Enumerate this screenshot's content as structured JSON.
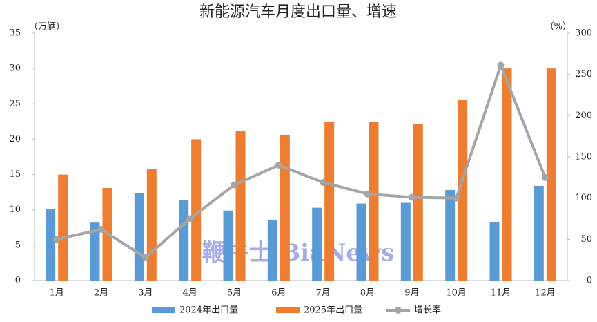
{
  "chart_data": {
    "type": "bar-line",
    "title": "新能源汽车月度出口量、增速",
    "y_label": "（万辆）",
    "y2_label": "（%）",
    "watermark": "鞭牛士 BiaNews",
    "categories": [
      "1月",
      "2月",
      "3月",
      "4月",
      "5月",
      "6月",
      "7月",
      "8月",
      "9月",
      "10月",
      "11月",
      "12月"
    ],
    "series": [
      {
        "name": "2024年出口量",
        "type": "bar",
        "color": "#5b9bd5",
        "values": [
          10.1,
          8.2,
          12.4,
          11.4,
          9.9,
          8.6,
          10.3,
          10.9,
          11.0,
          12.8,
          8.3,
          13.4
        ]
      },
      {
        "name": "2025年出口量",
        "type": "bar",
        "color": "#ed7d31",
        "values": [
          15.0,
          13.1,
          15.8,
          20.0,
          21.2,
          20.6,
          22.5,
          22.4,
          22.2,
          25.6,
          30.0,
          30.0
        ]
      },
      {
        "name": "增长率",
        "type": "line",
        "axis": "y2",
        "color": "#a5a5a5",
        "values": [
          50,
          62,
          28,
          75,
          116,
          140,
          119,
          105,
          101,
          100,
          261,
          125
        ]
      }
    ],
    "ylim": [
      0,
      35
    ],
    "yticks": [
      0,
      5,
      10,
      15,
      20,
      25,
      30,
      35
    ],
    "y2lim": [
      0,
      300
    ],
    "y2ticks": [
      0,
      50,
      100,
      150,
      200,
      250,
      300
    ]
  }
}
